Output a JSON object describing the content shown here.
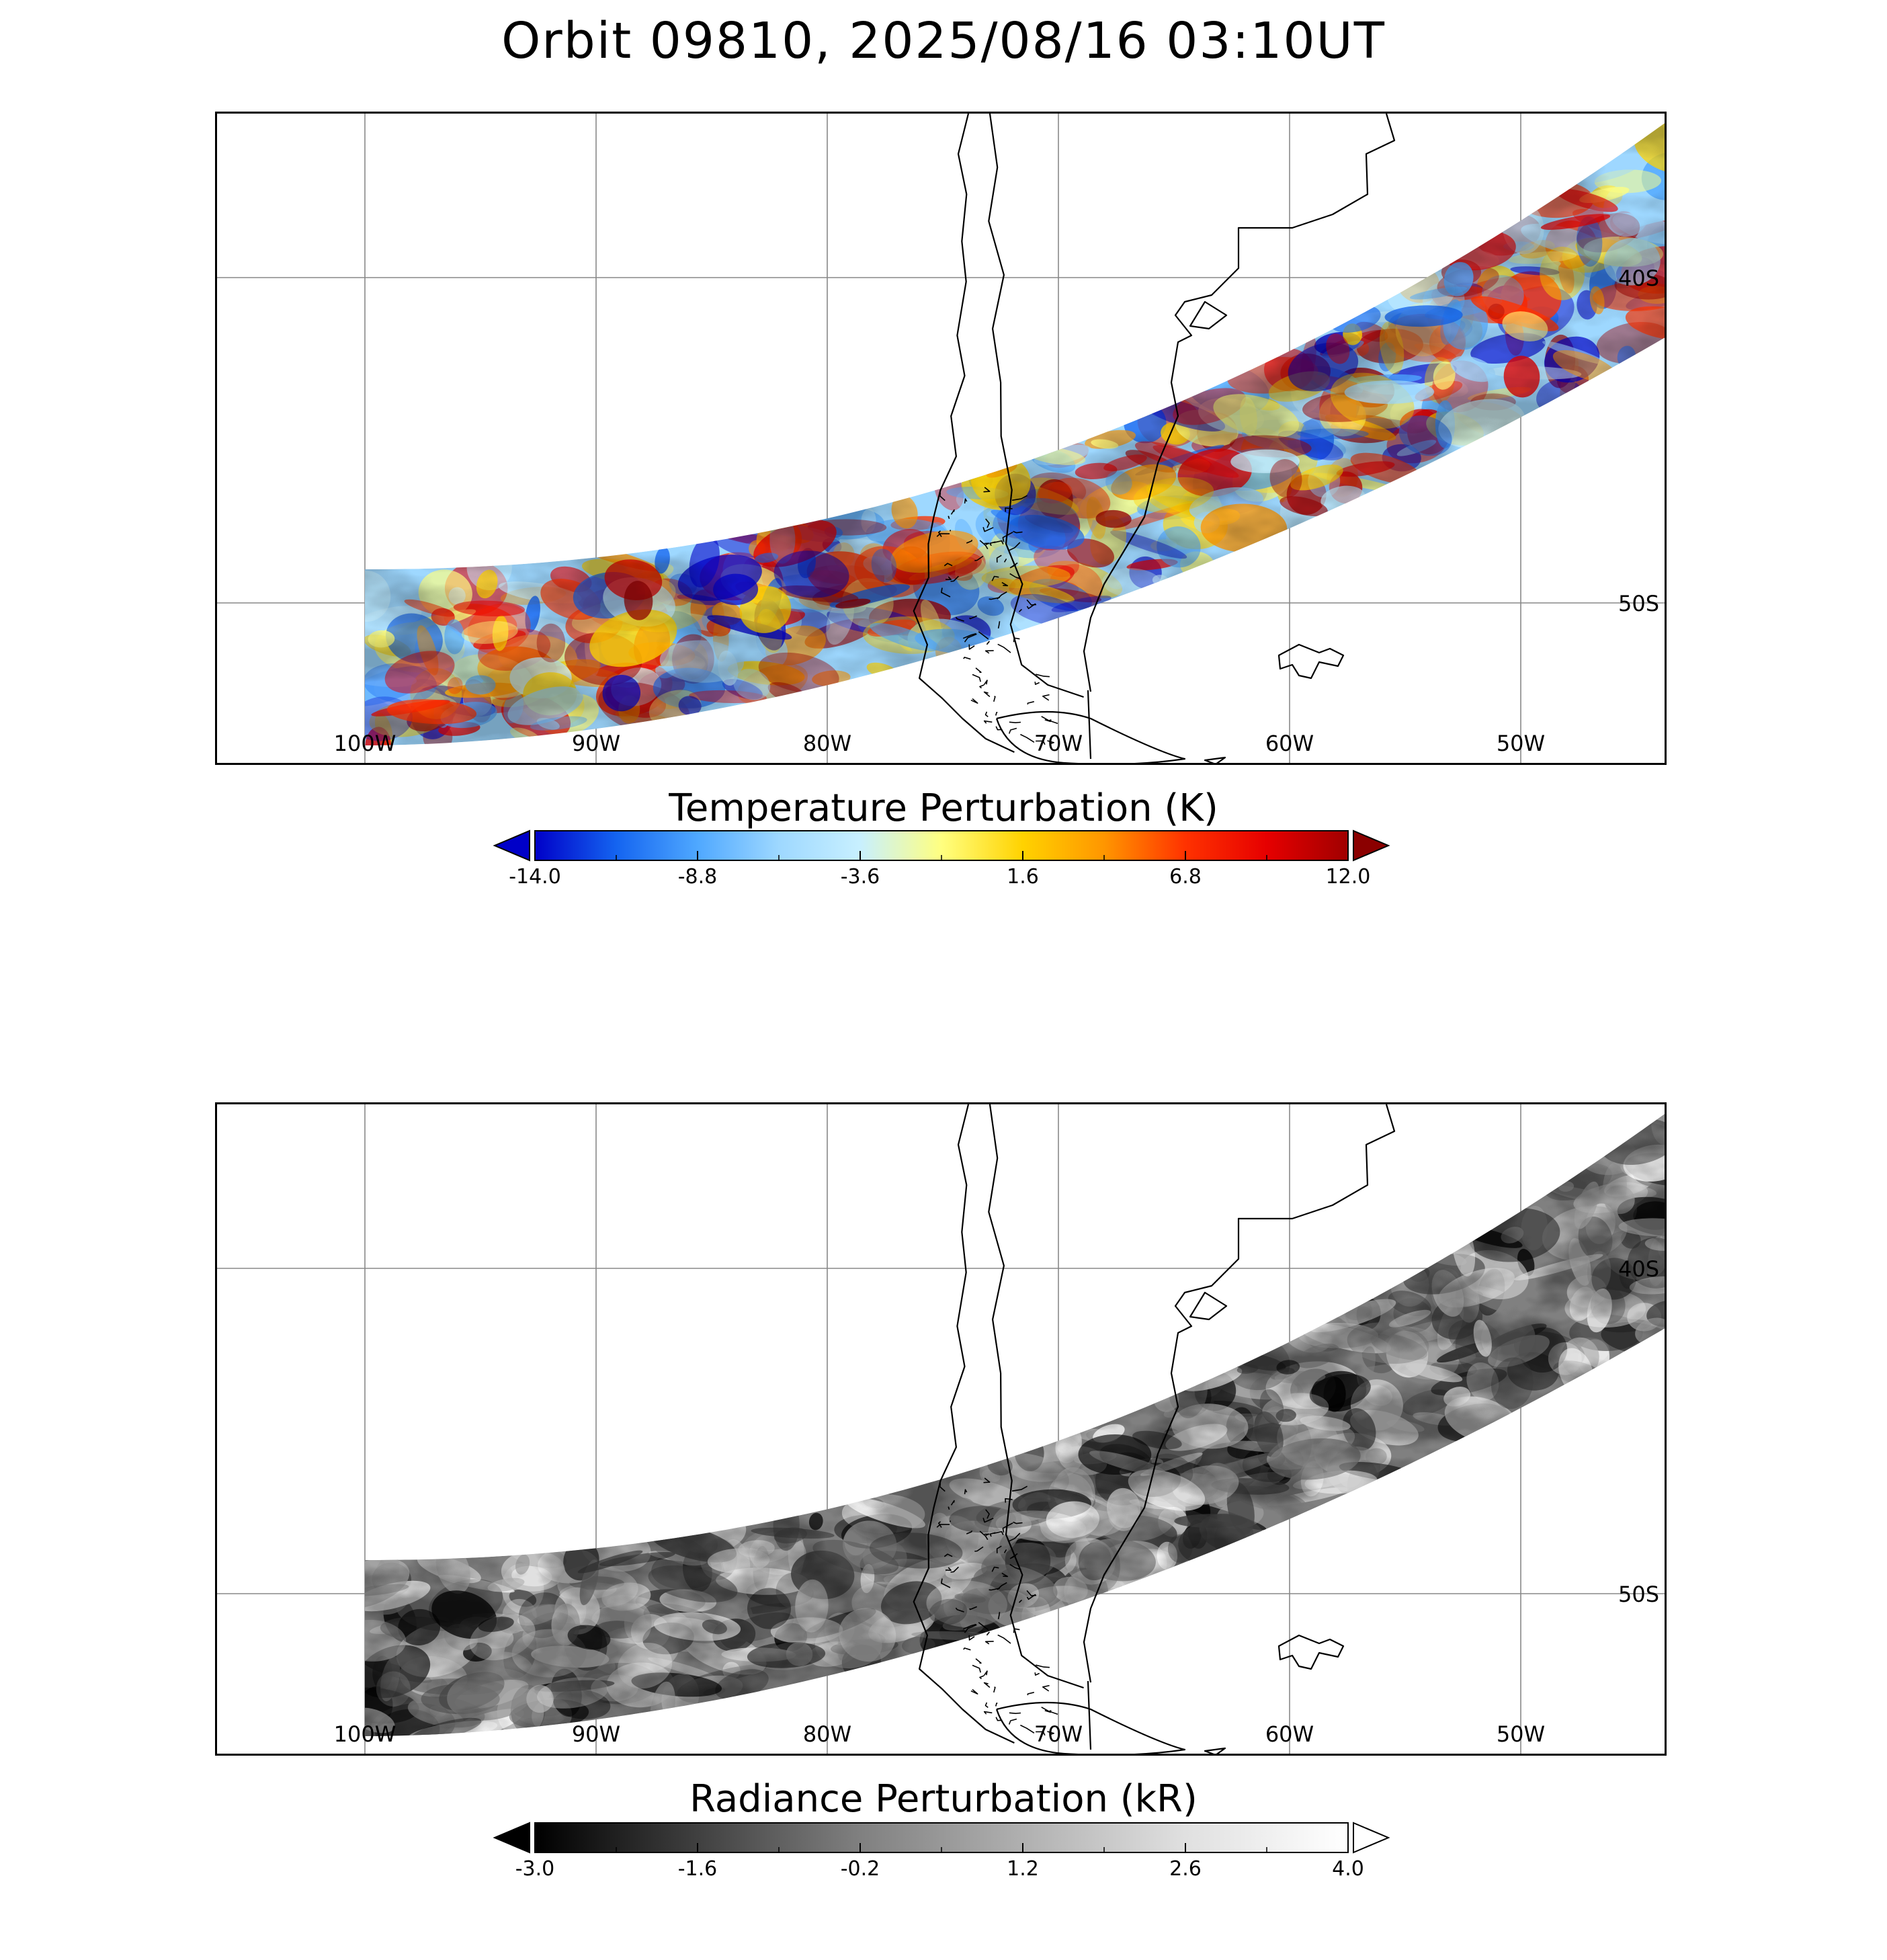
{
  "title": "Orbit 09810, 2025/08/16 03:10UT",
  "panels": [
    {
      "id": "temperature",
      "colorbar": {
        "title": "Temperature Perturbation (K)",
        "min": -14.0,
        "max": 12.0,
        "tick_labels": [
          "-14.0",
          "-8.8",
          "-3.6",
          "1.6",
          "6.8",
          "12.0"
        ],
        "colors": [
          "#0000c8",
          "#1464f0",
          "#4fa8ff",
          "#9ed8ff",
          "#c8f0ff",
          "#ffff80",
          "#ffd200",
          "#ff9600",
          "#ff3200",
          "#e60000",
          "#a00000"
        ],
        "under_color": "#0000c8",
        "over_color": "#8b0000"
      }
    },
    {
      "id": "radiance",
      "colorbar": {
        "title": "Radiance Perturbation (kR)",
        "min": -3.0,
        "max": 4.0,
        "tick_labels": [
          "-3.0",
          "-1.6",
          "-0.2",
          "1.2",
          "2.6",
          "4.0"
        ],
        "colors": [
          "#000000",
          "#404040",
          "#808080",
          "#b0b0b0",
          "#e0e0e0",
          "#ffffff"
        ],
        "under_color": "#000000",
        "over_color": "#ffffff"
      }
    }
  ],
  "map": {
    "lon_labels": [
      "100W",
      "90W",
      "80W",
      "70W",
      "60W",
      "50W"
    ],
    "lat_labels": [
      "40S",
      "50S"
    ]
  }
}
